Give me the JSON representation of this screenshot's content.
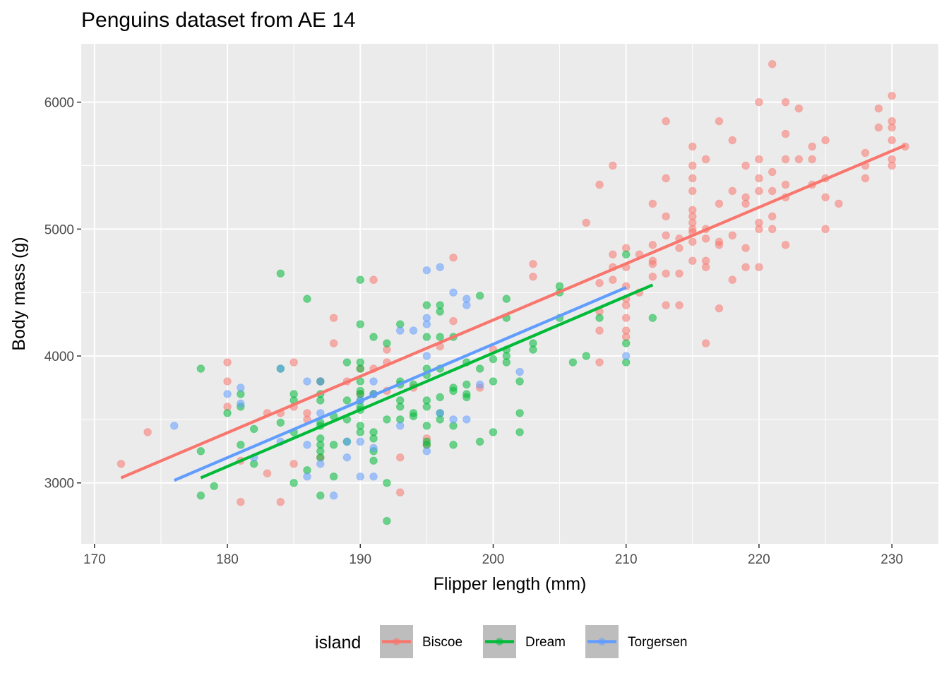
{
  "chart_data": {
    "type": "scatter",
    "title": "Penguins dataset from AE 14",
    "xlabel": "Flipper length (mm)",
    "ylabel": "Body mass (g)",
    "xlim": [
      169,
      233.5
    ],
    "ylim": [
      2520,
      6460
    ],
    "xticks": [
      170,
      180,
      190,
      200,
      210,
      220,
      230
    ],
    "yticks": [
      3000,
      4000,
      5000,
      6000
    ],
    "grid": true,
    "legend": {
      "title": "island",
      "position": "bottom"
    },
    "series": [
      {
        "name": "Biscoe",
        "color": "#F8766D",
        "points": [
          [
            172,
            3150
          ],
          [
            174,
            3400
          ],
          [
            180,
            3950
          ],
          [
            180,
            3800
          ],
          [
            180,
            3600
          ],
          [
            181,
            3175
          ],
          [
            181,
            2850
          ],
          [
            183,
            3550
          ],
          [
            183,
            3075
          ],
          [
            184,
            3550
          ],
          [
            184,
            2850
          ],
          [
            185,
            3950
          ],
          [
            185,
            3600
          ],
          [
            185,
            3150
          ],
          [
            186,
            3550
          ],
          [
            186,
            3500
          ],
          [
            187,
            3800
          ],
          [
            187,
            3200
          ],
          [
            188,
            4300
          ],
          [
            188,
            4100
          ],
          [
            189,
            3800
          ],
          [
            190,
            3900
          ],
          [
            190,
            3700
          ],
          [
            191,
            4600
          ],
          [
            191,
            3900
          ],
          [
            191,
            3700
          ],
          [
            192,
            4050
          ],
          [
            192,
            3950
          ],
          [
            192,
            3725
          ],
          [
            193,
            3200
          ],
          [
            193,
            2925
          ],
          [
            194,
            3750
          ],
          [
            195,
            3350
          ],
          [
            195,
            3300
          ],
          [
            196,
            4075
          ],
          [
            197,
            4775
          ],
          [
            197,
            4275
          ],
          [
            199,
            3750
          ],
          [
            200,
            4050
          ],
          [
            203,
            4725
          ],
          [
            203,
            4625
          ],
          [
            207,
            5050
          ],
          [
            208,
            5350
          ],
          [
            208,
            4575
          ],
          [
            208,
            4350
          ],
          [
            208,
            4200
          ],
          [
            208,
            3950
          ],
          [
            209,
            5500
          ],
          [
            209,
            4800
          ],
          [
            209,
            4700
          ],
          [
            209,
            4600
          ],
          [
            210,
            4850
          ],
          [
            210,
            4700
          ],
          [
            210,
            4550
          ],
          [
            210,
            4450
          ],
          [
            210,
            4400
          ],
          [
            210,
            4300
          ],
          [
            210,
            4200
          ],
          [
            210,
            4150
          ],
          [
            211,
            4800
          ],
          [
            211,
            4500
          ],
          [
            212,
            5200
          ],
          [
            212,
            4875
          ],
          [
            212,
            4750
          ],
          [
            212,
            4725
          ],
          [
            212,
            4625
          ],
          [
            213,
            5850
          ],
          [
            213,
            5400
          ],
          [
            213,
            5100
          ],
          [
            213,
            4950
          ],
          [
            213,
            4650
          ],
          [
            213,
            4400
          ],
          [
            214,
            4925
          ],
          [
            214,
            4850
          ],
          [
            214,
            4650
          ],
          [
            214,
            4400
          ],
          [
            215,
            5650
          ],
          [
            215,
            5500
          ],
          [
            215,
            5400
          ],
          [
            215,
            5300
          ],
          [
            215,
            5150
          ],
          [
            215,
            5100
          ],
          [
            215,
            5050
          ],
          [
            215,
            5000
          ],
          [
            215,
            4975
          ],
          [
            215,
            4900
          ],
          [
            215,
            4750
          ],
          [
            216,
            5550
          ],
          [
            216,
            5000
          ],
          [
            216,
            4925
          ],
          [
            216,
            4750
          ],
          [
            216,
            4700
          ],
          [
            216,
            4100
          ],
          [
            217,
            5850
          ],
          [
            217,
            5200
          ],
          [
            217,
            4900
          ],
          [
            217,
            4875
          ],
          [
            217,
            4375
          ],
          [
            218,
            5700
          ],
          [
            218,
            5300
          ],
          [
            218,
            4950
          ],
          [
            218,
            4600
          ],
          [
            219,
            5500
          ],
          [
            219,
            5250
          ],
          [
            219,
            5200
          ],
          [
            219,
            4850
          ],
          [
            219,
            4700
          ],
          [
            220,
            6000
          ],
          [
            220,
            5550
          ],
          [
            220,
            5400
          ],
          [
            220,
            5300
          ],
          [
            220,
            5050
          ],
          [
            220,
            5000
          ],
          [
            220,
            4700
          ],
          [
            221,
            6300
          ],
          [
            221,
            5450
          ],
          [
            221,
            5300
          ],
          [
            221,
            5100
          ],
          [
            221,
            5000
          ],
          [
            222,
            6000
          ],
          [
            222,
            5750
          ],
          [
            222,
            5550
          ],
          [
            222,
            5350
          ],
          [
            222,
            5250
          ],
          [
            222,
            4875
          ],
          [
            223,
            5950
          ],
          [
            223,
            5550
          ],
          [
            224,
            5650
          ],
          [
            224,
            5550
          ],
          [
            224,
            5350
          ],
          [
            225,
            5700
          ],
          [
            225,
            5400
          ],
          [
            225,
            5250
          ],
          [
            225,
            5000
          ],
          [
            226,
            5200
          ],
          [
            228,
            5600
          ],
          [
            228,
            5500
          ],
          [
            228,
            5400
          ],
          [
            229,
            5950
          ],
          [
            229,
            5800
          ],
          [
            230,
            6050
          ],
          [
            230,
            5850
          ],
          [
            230,
            5800
          ],
          [
            230,
            5700
          ],
          [
            230,
            5550
          ],
          [
            230,
            5500
          ],
          [
            231,
            5650
          ]
        ],
        "fit": [
          [
            172,
            3040
          ],
          [
            231,
            5660
          ]
        ]
      },
      {
        "name": "Dream",
        "color": "#00BA38",
        "points": [
          [
            178,
            3900
          ],
          [
            178,
            3250
          ],
          [
            178,
            2900
          ],
          [
            179,
            2975
          ],
          [
            180,
            3550
          ],
          [
            181,
            3700
          ],
          [
            181,
            3600
          ],
          [
            181,
            3300
          ],
          [
            182,
            3425
          ],
          [
            182,
            3150
          ],
          [
            184,
            4650
          ],
          [
            184,
            3900
          ],
          [
            184,
            3475
          ],
          [
            185,
            3700
          ],
          [
            185,
            3650
          ],
          [
            185,
            3400
          ],
          [
            185,
            3000
          ],
          [
            186,
            4450
          ],
          [
            186,
            3100
          ],
          [
            187,
            3800
          ],
          [
            187,
            3700
          ],
          [
            187,
            3650
          ],
          [
            187,
            3475
          ],
          [
            187,
            3450
          ],
          [
            187,
            3350
          ],
          [
            187,
            3300
          ],
          [
            187,
            3250
          ],
          [
            187,
            3200
          ],
          [
            187,
            2900
          ],
          [
            188,
            3525
          ],
          [
            188,
            3300
          ],
          [
            188,
            3050
          ],
          [
            189,
            3950
          ],
          [
            189,
            3650
          ],
          [
            189,
            3500
          ],
          [
            189,
            3325
          ],
          [
            190,
            4600
          ],
          [
            190,
            4250
          ],
          [
            190,
            3950
          ],
          [
            190,
            3900
          ],
          [
            190,
            3800
          ],
          [
            190,
            3725
          ],
          [
            190,
            3700
          ],
          [
            190,
            3650
          ],
          [
            190,
            3600
          ],
          [
            190,
            3575
          ],
          [
            190,
            3450
          ],
          [
            190,
            3400
          ],
          [
            191,
            4150
          ],
          [
            191,
            3700
          ],
          [
            191,
            3400
          ],
          [
            191,
            3350
          ],
          [
            191,
            3250
          ],
          [
            191,
            3175
          ],
          [
            192,
            4100
          ],
          [
            192,
            3500
          ],
          [
            192,
            3000
          ],
          [
            192,
            2700
          ],
          [
            193,
            4250
          ],
          [
            193,
            3800
          ],
          [
            193,
            3775
          ],
          [
            193,
            3650
          ],
          [
            193,
            3600
          ],
          [
            193,
            3500
          ],
          [
            194,
            3775
          ],
          [
            194,
            3550
          ],
          [
            194,
            3525
          ],
          [
            195,
            4400
          ],
          [
            195,
            4150
          ],
          [
            195,
            3900
          ],
          [
            195,
            3850
          ],
          [
            195,
            3650
          ],
          [
            195,
            3600
          ],
          [
            195,
            3450
          ],
          [
            195,
            3325
          ],
          [
            195,
            3300
          ],
          [
            196,
            4400
          ],
          [
            196,
            4350
          ],
          [
            196,
            4150
          ],
          [
            196,
            3900
          ],
          [
            196,
            3675
          ],
          [
            196,
            3550
          ],
          [
            196,
            3500
          ],
          [
            197,
            4150
          ],
          [
            197,
            3750
          ],
          [
            197,
            3725
          ],
          [
            197,
            3450
          ],
          [
            197,
            3300
          ],
          [
            198,
            3950
          ],
          [
            198,
            3775
          ],
          [
            198,
            3700
          ],
          [
            198,
            3675
          ],
          [
            199,
            4475
          ],
          [
            199,
            3900
          ],
          [
            199,
            3325
          ],
          [
            200,
            3975
          ],
          [
            200,
            3800
          ],
          [
            200,
            3400
          ],
          [
            201,
            4450
          ],
          [
            201,
            4300
          ],
          [
            201,
            4050
          ],
          [
            201,
            4000
          ],
          [
            201,
            3950
          ],
          [
            202,
            3800
          ],
          [
            202,
            3550
          ],
          [
            202,
            3400
          ],
          [
            203,
            4100
          ],
          [
            203,
            4050
          ],
          [
            205,
            4550
          ],
          [
            205,
            4500
          ],
          [
            205,
            4300
          ],
          [
            206,
            3950
          ],
          [
            207,
            4000
          ],
          [
            208,
            4300
          ],
          [
            210,
            4800
          ],
          [
            210,
            4100
          ],
          [
            210,
            3950
          ],
          [
            212,
            4300
          ]
        ],
        "fit": [
          [
            178,
            3040
          ],
          [
            212,
            4560
          ]
        ]
      },
      {
        "name": "Torgersen",
        "color": "#619CFF",
        "points": [
          [
            176,
            3450
          ],
          [
            180,
            3700
          ],
          [
            181,
            3750
          ],
          [
            181,
            3625
          ],
          [
            182,
            3200
          ],
          [
            184,
            3900
          ],
          [
            184,
            3325
          ],
          [
            186,
            3800
          ],
          [
            186,
            3300
          ],
          [
            186,
            3050
          ],
          [
            187,
            3800
          ],
          [
            187,
            3550
          ],
          [
            187,
            3150
          ],
          [
            188,
            2900
          ],
          [
            189,
            3325
          ],
          [
            189,
            3200
          ],
          [
            190,
            3650
          ],
          [
            190,
            3325
          ],
          [
            190,
            3050
          ],
          [
            191,
            3800
          ],
          [
            191,
            3700
          ],
          [
            191,
            3275
          ],
          [
            191,
            3050
          ],
          [
            193,
            4200
          ],
          [
            193,
            3450
          ],
          [
            194,
            4200
          ],
          [
            195,
            4675
          ],
          [
            195,
            4300
          ],
          [
            195,
            4250
          ],
          [
            195,
            4000
          ],
          [
            195,
            3250
          ],
          [
            196,
            4700
          ],
          [
            196,
            3550
          ],
          [
            197,
            4500
          ],
          [
            197,
            3500
          ],
          [
            198,
            4450
          ],
          [
            198,
            4400
          ],
          [
            198,
            3500
          ],
          [
            199,
            3775
          ],
          [
            202,
            3875
          ],
          [
            210,
            4000
          ]
        ],
        "fit": [
          [
            176,
            3020
          ],
          [
            210,
            4540
          ]
        ]
      }
    ]
  }
}
